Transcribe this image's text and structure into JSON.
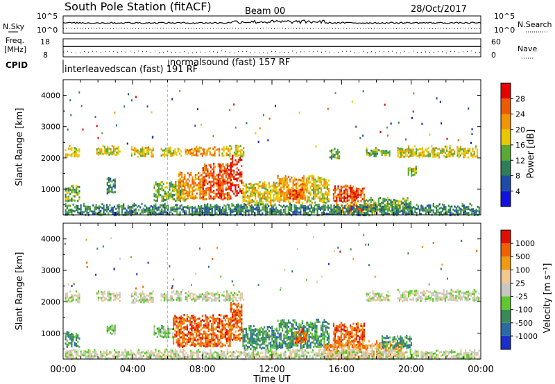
{
  "header": {
    "station": "South Pole Station (fitACF)",
    "beam": "Beam 00",
    "date": "28/Oct/2017"
  },
  "top_panels": {
    "nsky_label": "N.Sky",
    "nsearch_label": "N.Search",
    "freq_label_1": "Freq.",
    "freq_label_2": "[MHz]",
    "nave_label": "Nave",
    "cpid_label": "CPID",
    "noise_ticks": [
      "10^5",
      "10^0"
    ],
    "freq_ticks": [
      "18",
      "8"
    ],
    "nave_ticks": [
      "60",
      "0"
    ],
    "cpid_1": "interleavedscan (fast)  191 RF",
    "cpid_2": "normalsound (fast)  157 RF"
  },
  "chart_data": [
    {
      "type": "heatmap",
      "panel": "power",
      "ylabel": "Slant Range [km]",
      "xlabel": "Time UT",
      "xlim": [
        0,
        24
      ],
      "ylim": [
        180,
        4500
      ],
      "x_ticks": [
        "00:00",
        "04:00",
        "08:00",
        "12:00",
        "16:00",
        "20:00",
        "00:00"
      ],
      "y_ticks": [
        1000,
        2000,
        3000,
        4000
      ],
      "colorbar": {
        "label": "Power [dB]",
        "ticks": [
          4,
          8,
          12,
          16,
          20,
          24,
          28
        ],
        "colors": [
          "#1212e0",
          "#1e4aa8",
          "#2e7e58",
          "#5aa836",
          "#e8c800",
          "#f29400",
          "#ee5a00",
          "#e80000"
        ]
      },
      "regions": [
        {
          "t0": 0.1,
          "t1": 0.9,
          "r0": 2050,
          "r1": 2300,
          "level": 4
        },
        {
          "t0": 1.9,
          "t1": 3.3,
          "r0": 2120,
          "r1": 2360,
          "level": 4
        },
        {
          "t0": 3.9,
          "t1": 5.2,
          "r0": 2050,
          "r1": 2340,
          "level": 4
        },
        {
          "t0": 5.6,
          "t1": 6.8,
          "r0": 2080,
          "r1": 2300,
          "level": 4
        },
        {
          "t0": 7.0,
          "t1": 9.0,
          "r0": 2100,
          "r1": 2320,
          "level": 5
        },
        {
          "t0": 9.1,
          "t1": 10.4,
          "r0": 2080,
          "r1": 2360,
          "level": 4
        },
        {
          "t0": 15.3,
          "t1": 15.9,
          "r0": 2000,
          "r1": 2280,
          "level": 3
        },
        {
          "t0": 17.4,
          "t1": 18.8,
          "r0": 2080,
          "r1": 2300,
          "level": 3
        },
        {
          "t0": 19.2,
          "t1": 23.9,
          "r0": 2050,
          "r1": 2350,
          "level": 4
        },
        {
          "t0": 19.8,
          "t1": 20.3,
          "r0": 1450,
          "r1": 1700,
          "level": 3
        },
        {
          "t0": 0.1,
          "t1": 0.9,
          "r0": 650,
          "r1": 1100,
          "level": 3
        },
        {
          "t0": 2.5,
          "t1": 3.0,
          "r0": 900,
          "r1": 1350,
          "level": 2
        },
        {
          "t0": 5.2,
          "t1": 7.0,
          "r0": 650,
          "r1": 1200,
          "level": 3
        },
        {
          "t0": 6.6,
          "t1": 8.1,
          "r0": 700,
          "r1": 1500,
          "level": 5
        },
        {
          "t0": 8.0,
          "t1": 9.6,
          "r0": 700,
          "r1": 1800,
          "level": 6
        },
        {
          "t0": 9.6,
          "t1": 10.3,
          "r0": 800,
          "r1": 2050,
          "level": 7
        },
        {
          "t0": 10.3,
          "t1": 12.3,
          "r0": 500,
          "r1": 1200,
          "level": 4
        },
        {
          "t0": 12.3,
          "t1": 14.0,
          "r0": 600,
          "r1": 1400,
          "level": 5
        },
        {
          "t0": 13.0,
          "t1": 13.8,
          "r0": 700,
          "r1": 1000,
          "level": 6
        },
        {
          "t0": 14.0,
          "t1": 15.3,
          "r0": 600,
          "r1": 1400,
          "level": 4
        },
        {
          "t0": 15.5,
          "t1": 17.3,
          "r0": 600,
          "r1": 1100,
          "level": 6
        },
        {
          "t0": 16.3,
          "t1": 17.0,
          "r0": 750,
          "r1": 1000,
          "level": 7
        },
        {
          "t0": 15.5,
          "t1": 18.0,
          "r0": 250,
          "r1": 550,
          "level": 5
        },
        {
          "t0": 16.5,
          "t1": 17.6,
          "r0": 330,
          "r1": 500,
          "level": 7
        },
        {
          "t0": 17.3,
          "t1": 20.0,
          "r0": 350,
          "r1": 700,
          "level": 3
        },
        {
          "t0": 0.1,
          "t1": 23.9,
          "r0": 200,
          "r1": 500,
          "level": 2
        }
      ]
    },
    {
      "type": "heatmap",
      "panel": "velocity",
      "ylabel": "Slant Range [km]",
      "xlabel": "Time UT",
      "xlim": [
        0,
        24
      ],
      "ylim": [
        180,
        4500
      ],
      "x_ticks": [
        "00:00",
        "04:00",
        "08:00",
        "12:00",
        "16:00",
        "20:00",
        "00:00"
      ],
      "y_ticks": [
        1000,
        2000,
        3000,
        4000
      ],
      "colorbar": {
        "label": "Velocity [m s⁻¹]",
        "ticks": [
          1000,
          500,
          100,
          25,
          -25,
          -100,
          -500,
          -1000
        ],
        "colors": [
          "#1c2ecc",
          "#2a6aa6",
          "#3a8a58",
          "#5ec82e",
          "#c8c8c0",
          "#f0c890",
          "#f09a10",
          "#f06000",
          "#e01000"
        ]
      },
      "regions": [
        {
          "t0": 0.1,
          "t1": 0.9,
          "r0": 2000,
          "r1": 2300,
          "level": 4
        },
        {
          "t0": 1.9,
          "t1": 3.3,
          "r0": 2050,
          "r1": 2300,
          "level": 4
        },
        {
          "t0": 3.9,
          "t1": 5.2,
          "r0": 2000,
          "r1": 2300,
          "level": 4
        },
        {
          "t0": 5.6,
          "t1": 6.8,
          "r0": 2050,
          "r1": 2300,
          "level": 4
        },
        {
          "t0": 7.0,
          "t1": 9.0,
          "r0": 2050,
          "r1": 2300,
          "level": 4
        },
        {
          "t0": 9.1,
          "t1": 10.4,
          "r0": 2050,
          "r1": 2300,
          "level": 4
        },
        {
          "t0": 17.4,
          "t1": 18.8,
          "r0": 2050,
          "r1": 2300,
          "level": 4
        },
        {
          "t0": 19.2,
          "t1": 23.9,
          "r0": 2050,
          "r1": 2350,
          "level": 4
        },
        {
          "t0": 0.1,
          "t1": 0.9,
          "r0": 600,
          "r1": 1000,
          "level": 2
        },
        {
          "t0": 2.5,
          "t1": 3.0,
          "r0": 1000,
          "r1": 1300,
          "level": 3
        },
        {
          "t0": 5.2,
          "t1": 6.3,
          "r0": 900,
          "r1": 1200,
          "level": 3
        },
        {
          "t0": 6.3,
          "t1": 9.6,
          "r0": 600,
          "r1": 1550,
          "level": 7
        },
        {
          "t0": 9.6,
          "t1": 10.3,
          "r0": 800,
          "r1": 2000,
          "level": 7
        },
        {
          "t0": 10.3,
          "t1": 12.3,
          "r0": 500,
          "r1": 1200,
          "level": 2
        },
        {
          "t0": 12.3,
          "t1": 14.0,
          "r0": 550,
          "r1": 1400,
          "level": 2
        },
        {
          "t0": 13.3,
          "t1": 14.0,
          "r0": 700,
          "r1": 1100,
          "level": 7
        },
        {
          "t0": 14.0,
          "t1": 15.3,
          "r0": 550,
          "r1": 1400,
          "level": 2
        },
        {
          "t0": 15.5,
          "t1": 17.3,
          "r0": 600,
          "r1": 1300,
          "level": 7
        },
        {
          "t0": 15.0,
          "t1": 16.4,
          "r0": 200,
          "r1": 650,
          "level": 6
        },
        {
          "t0": 16.4,
          "t1": 19.5,
          "r0": 250,
          "r1": 750,
          "level": 6
        },
        {
          "t0": 18.3,
          "t1": 20.0,
          "r0": 550,
          "r1": 900,
          "level": 2
        },
        {
          "t0": 0.1,
          "t1": 23.9,
          "r0": 200,
          "r1": 450,
          "level": 4
        }
      ]
    }
  ],
  "time_axis_label": "Time UT"
}
